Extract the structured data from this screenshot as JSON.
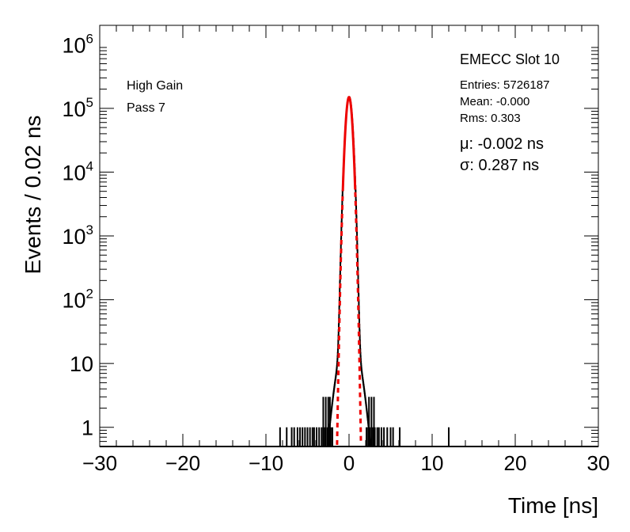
{
  "chart_data": {
    "type": "line",
    "title": "",
    "xlabel": "Time [ns]",
    "ylabel": "Events / 0.02 ns",
    "xlim": [
      -30,
      30
    ],
    "ylim": [
      0.5,
      2000000
    ],
    "ylog": true,
    "x_ticks": [
      {
        "value": -30,
        "label": "−30"
      },
      {
        "value": -20,
        "label": "−20"
      },
      {
        "value": -10,
        "label": "−10"
      },
      {
        "value": 0,
        "label": "0"
      },
      {
        "value": 10,
        "label": "10"
      },
      {
        "value": 20,
        "label": "20"
      },
      {
        "value": 30,
        "label": "30"
      }
    ],
    "y_ticks": [
      {
        "value": 1,
        "base": "1",
        "exp": ""
      },
      {
        "value": 10,
        "base": "10",
        "exp": ""
      },
      {
        "value": 100,
        "base": "10",
        "exp": "2"
      },
      {
        "value": 1000,
        "base": "10",
        "exp": "3"
      },
      {
        "value": 10000,
        "base": "10",
        "exp": "4"
      },
      {
        "value": 100000,
        "base": "10",
        "exp": "5"
      },
      {
        "value": 1000000,
        "base": "10",
        "exp": "6"
      }
    ],
    "series": [
      {
        "kind": "histogram",
        "color": "#000000",
        "peak": 150000,
        "sigma": 0.29,
        "noise_hits": [
          -8.3,
          -7.5,
          -6.9,
          -6.6,
          -6.2,
          -5.9,
          -5.6,
          -5.3,
          -5.0,
          -4.7,
          -4.4,
          -4.2,
          -3.9,
          -3.6,
          -3.3,
          -3.1,
          -2.9,
          -2.6,
          -2.4,
          -2.2,
          -2.0,
          2.1,
          2.3,
          2.5,
          2.7,
          2.9,
          3.1,
          3.4,
          3.6,
          3.9,
          4.2,
          4.6,
          5.0,
          5.3,
          6.1,
          12.0
        ],
        "noise_tall": [
          -3.1,
          -2.8,
          -2.5,
          -2.3,
          2.4,
          2.7,
          3.0
        ]
      },
      {
        "kind": "gaussian-fit",
        "color": "#ee0000",
        "mu": -0.002,
        "sigma": 0.287,
        "peak": 150000
      }
    ],
    "stats": {
      "title": "EMECC Slot 10",
      "entries": "Entries: 5726187",
      "mean": "Mean: -0.000",
      "rms": "Rms: 0.303"
    },
    "fit_text": {
      "mu": "μ: -0.002 ns",
      "sigma": "σ: 0.287 ns"
    },
    "annotations": {
      "gain": "High Gain",
      "pass": "Pass 7"
    }
  }
}
